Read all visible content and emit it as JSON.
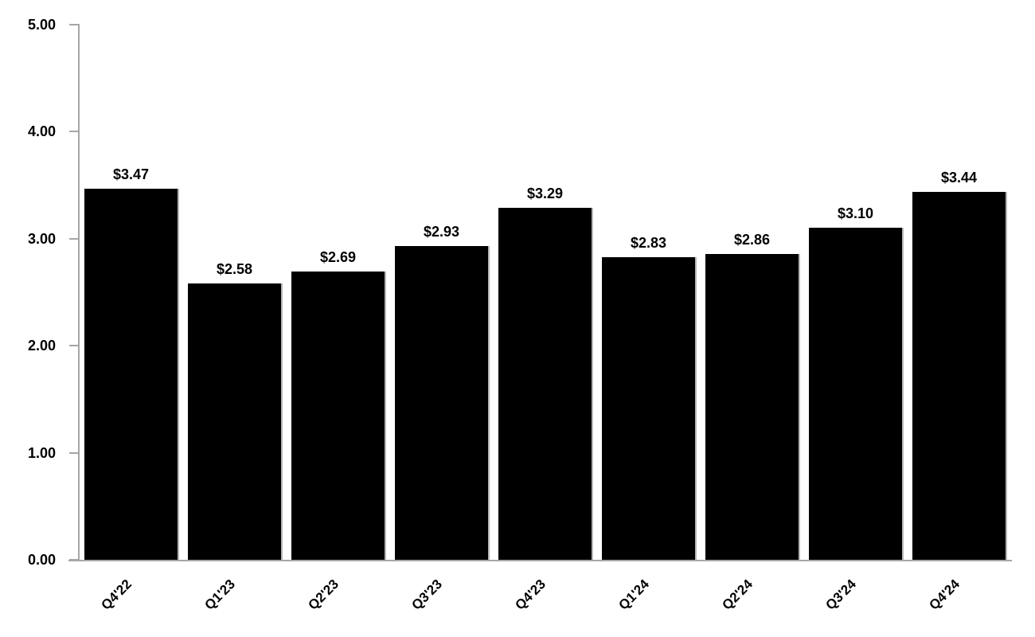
{
  "chart_data": {
    "type": "bar",
    "title": "",
    "xlabel": "",
    "ylabel": "",
    "categories": [
      "Q4'22",
      "Q1'23",
      "Q2'23",
      "Q3'23",
      "Q4'23",
      "Q1'24",
      "Q2'24",
      "Q3'24",
      "Q4'24"
    ],
    "values": [
      3.47,
      2.58,
      2.69,
      2.93,
      3.29,
      2.83,
      2.86,
      3.1,
      3.44
    ],
    "value_labels": [
      "$3.47",
      "$2.58",
      "$2.69",
      "$2.93",
      "$3.29",
      "$2.83",
      "$2.86",
      "$3.10",
      "$3.44"
    ],
    "ylim": [
      0,
      5
    ],
    "ytick_labels": [
      "0.00",
      "1.00",
      "2.00",
      "3.00",
      "4.00",
      "5.00"
    ],
    "grid": false,
    "legend": false,
    "bar_color": "#000000",
    "bar_shadow_color": "#b7b7b7",
    "axis_color": "#a6a6a6",
    "text_color": "#000000",
    "background_color": "#ffffff"
  }
}
